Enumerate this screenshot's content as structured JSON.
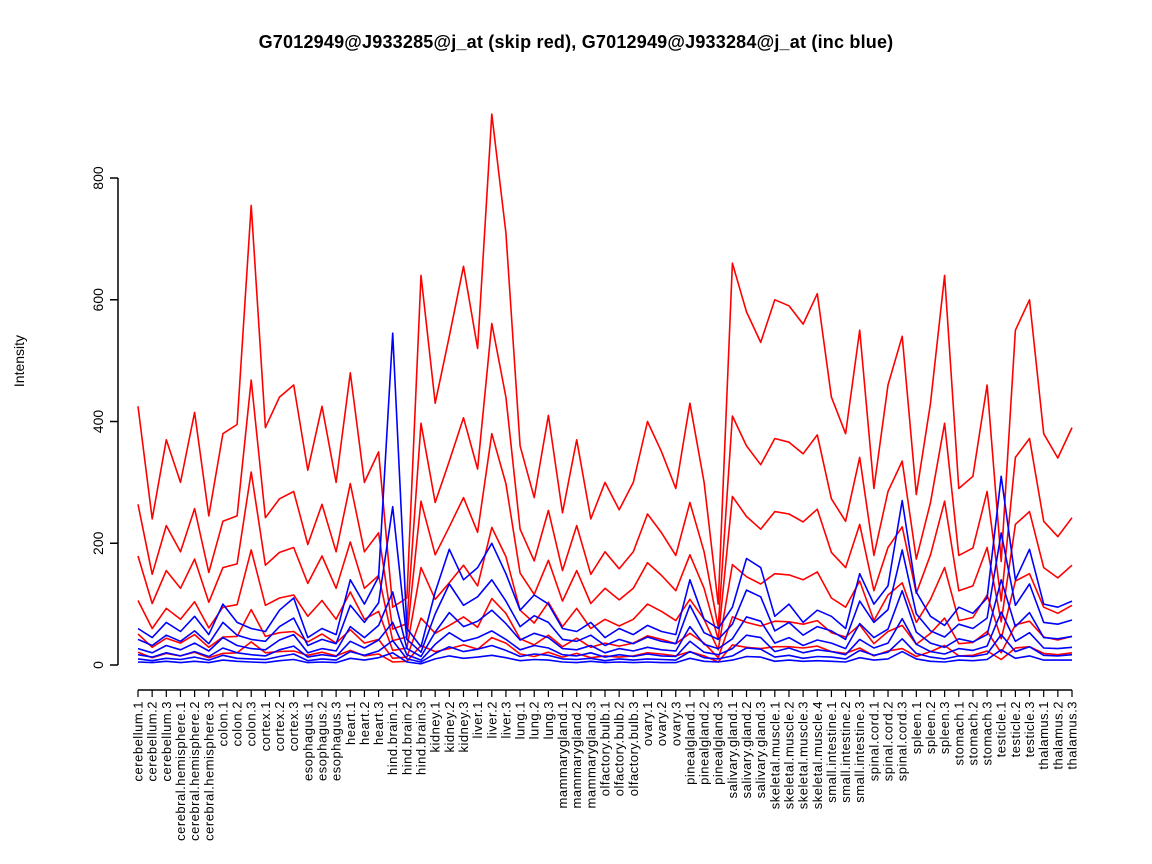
{
  "figure": {
    "background": "#FFFFFF"
  },
  "chart_data": {
    "type": "line",
    "title": "G7012949@J933285@j_at (skip red), G7012949@J933284@j_at (inc blue)",
    "ylabel": "Intensity",
    "xlabel": "",
    "ylim": [
      0,
      905
    ],
    "yticks": [
      0,
      200,
      400,
      600,
      800
    ],
    "grid": false,
    "legend": "none",
    "series_groups": [
      {
        "probeset": "G7012949@J933285@j_at",
        "label": "skip",
        "color": "#FF0000"
      },
      {
        "probeset": "G7012949@J933284@j_at",
        "label": "inc",
        "color": "#0000FF"
      }
    ],
    "categories": [
      "cerebellum.1",
      "cerebellum.2",
      "cerebellum.3",
      "cerebral.hemisphere.1",
      "cerebral.hemisphere.2",
      "cerebral.hemisphere.3",
      "colon.1",
      "colon.2",
      "colon.3",
      "cortex.1",
      "cortex.2",
      "cortex.3",
      "esophagus.1",
      "esophagus.2",
      "esophagus.3",
      "heart.1",
      "heart.2",
      "heart.3",
      "hind.brain.1",
      "hind.brain.2",
      "hind.brain.3",
      "kidney.1",
      "kidney.2",
      "kidney.3",
      "liver.1",
      "liver.2",
      "liver.3",
      "lung.1",
      "lung.2",
      "lung.3",
      "mammarygland.1",
      "mammarygland.2",
      "mammarygland.3",
      "olfactory.bulb.1",
      "olfactory.bulb.2",
      "olfactory.bulb.3",
      "ovary.1",
      "ovary.2",
      "ovary.3",
      "pinealgland.1",
      "pinealgland.2",
      "pinealgland.3",
      "salivary.gland.1",
      "salivary.gland.2",
      "salivary.gland.3",
      "skeletal.muscle.1",
      "skeletal.muscle.2",
      "skeletal.muscle.3",
      "skeletal.muscle.4",
      "small.intestine.1",
      "small.intestine.2",
      "small.intestine.3",
      "spinal.cord.1",
      "spinal.cord.2",
      "spinal.cord.3",
      "spleen.1",
      "spleen.2",
      "spleen.3",
      "stomach.1",
      "stomach.2",
      "stomach.3",
      "testicle.1",
      "testicle.2",
      "testicle.3",
      "thalamus.1",
      "thalamus.2",
      "thalamus.3"
    ],
    "series": [
      {
        "name": "skip-probe-1",
        "group": "skip",
        "color": "#FF0000",
        "values": [
          425,
          240,
          370,
          300,
          415,
          245,
          380,
          395,
          755,
          390,
          440,
          460,
          320,
          425,
          300,
          480,
          300,
          350,
          95,
          110,
          640,
          430,
          540,
          655,
          520,
          905,
          710,
          360,
          275,
          410,
          250,
          370,
          240,
          300,
          255,
          300,
          400,
          350,
          290,
          430,
          300,
          100,
          660,
          580,
          530,
          600,
          590,
          560,
          610,
          440,
          380,
          550,
          290,
          460,
          540,
          280,
          430,
          640,
          290,
          310,
          460,
          170,
          550,
          600,
          380,
          340,
          390
        ]
      },
      {
        "name": "skip-probe-2",
        "group": "skip",
        "color": "#FF0000",
        "values": [
          264,
          149,
          229,
          186,
          257,
          152,
          236,
          245,
          468,
          242,
          273,
          285,
          198,
          264,
          186,
          298,
          186,
          217,
          59,
          68,
          397,
          267,
          335,
          406,
          322,
          561,
          440,
          223,
          171,
          254,
          155,
          229,
          149,
          186,
          158,
          186,
          248,
          217,
          180,
          267,
          186,
          62,
          409,
          360,
          329,
          372,
          366,
          347,
          378,
          273,
          236,
          341,
          180,
          285,
          335,
          174,
          267,
          397,
          180,
          192,
          285,
          105,
          341,
          372,
          236,
          211,
          242
        ]
      },
      {
        "name": "skip-probe-3",
        "group": "skip",
        "color": "#FF0000",
        "values": [
          179,
          101,
          155,
          126,
          174,
          103,
          160,
          166,
          317,
          164,
          185,
          193,
          134,
          179,
          126,
          202,
          126,
          147,
          40,
          46,
          269,
          181,
          227,
          275,
          218,
          380,
          298,
          151,
          116,
          172,
          105,
          155,
          101,
          126,
          107,
          126,
          168,
          147,
          122,
          181,
          126,
          42,
          277,
          244,
          223,
          252,
          248,
          235,
          256,
          185,
          160,
          231,
          122,
          193,
          227,
          118,
          181,
          269,
          122,
          130,
          193,
          71,
          231,
          252,
          160,
          143,
          164
        ]
      },
      {
        "name": "skip-probe-4",
        "group": "skip",
        "color": "#FF0000",
        "values": [
          106,
          60,
          93,
          75,
          104,
          61,
          95,
          99,
          189,
          98,
          110,
          115,
          80,
          106,
          75,
          120,
          75,
          88,
          24,
          28,
          160,
          108,
          135,
          164,
          130,
          226,
          178,
          90,
          69,
          103,
          63,
          93,
          60,
          75,
          64,
          75,
          100,
          88,
          73,
          108,
          75,
          25,
          165,
          145,
          133,
          150,
          148,
          140,
          153,
          110,
          95,
          138,
          73,
          115,
          135,
          70,
          108,
          160,
          73,
          78,
          115,
          43,
          138,
          150,
          95,
          85,
          98
        ]
      },
      {
        "name": "skip-probe-5",
        "group": "skip",
        "color": "#FF0000",
        "values": [
          51,
          29,
          44,
          36,
          50,
          29,
          46,
          47,
          91,
          47,
          53,
          55,
          38,
          51,
          36,
          58,
          36,
          42,
          11,
          13,
          77,
          52,
          65,
          79,
          62,
          109,
          85,
          43,
          33,
          49,
          30,
          44,
          29,
          36,
          31,
          36,
          48,
          42,
          35,
          52,
          36,
          12,
          79,
          70,
          64,
          72,
          71,
          67,
          73,
          53,
          46,
          66,
          35,
          55,
          65,
          34,
          52,
          77,
          35,
          37,
          55,
          20,
          66,
          72,
          46,
          41,
          47
        ]
      },
      {
        "name": "skip-probe-6",
        "group": "skip",
        "color": "#FF0000",
        "values": [
          21,
          12,
          19,
          15,
          21,
          12,
          19,
          20,
          38,
          20,
          22,
          23,
          16,
          21,
          15,
          24,
          15,
          18,
          5,
          6,
          32,
          22,
          27,
          33,
          26,
          45,
          36,
          18,
          14,
          21,
          13,
          19,
          12,
          15,
          13,
          15,
          20,
          18,
          15,
          22,
          15,
          5,
          33,
          29,
          27,
          30,
          30,
          28,
          31,
          22,
          19,
          28,
          15,
          23,
          27,
          14,
          22,
          32,
          15,
          16,
          23,
          9,
          28,
          30,
          19,
          17,
          20
        ]
      },
      {
        "name": "inc-probe-1",
        "group": "inc",
        "color": "#0000FF",
        "values": [
          60,
          45,
          70,
          55,
          80,
          50,
          100,
          70,
          60,
          55,
          90,
          110,
          45,
          60,
          50,
          140,
          100,
          145,
          545,
          60,
          30,
          120,
          190,
          140,
          160,
          200,
          150,
          90,
          115,
          100,
          60,
          55,
          70,
          45,
          60,
          50,
          65,
          55,
          50,
          140,
          75,
          60,
          95,
          175,
          160,
          80,
          100,
          70,
          90,
          80,
          60,
          150,
          100,
          130,
          270,
          120,
          80,
          65,
          95,
          85,
          110,
          310,
          140,
          190,
          100,
          95,
          105
        ]
      },
      {
        "name": "inc-probe-2",
        "group": "inc",
        "color": "#0000FF",
        "values": [
          42,
          32,
          49,
          39,
          56,
          35,
          70,
          49,
          42,
          39,
          63,
          77,
          32,
          42,
          35,
          98,
          70,
          102,
          260,
          42,
          21,
          84,
          133,
          98,
          112,
          140,
          105,
          63,
          81,
          70,
          42,
          39,
          49,
          32,
          42,
          35,
          46,
          39,
          35,
          98,
          53,
          42,
          67,
          123,
          112,
          56,
          70,
          49,
          63,
          56,
          42,
          105,
          70,
          91,
          189,
          84,
          56,
          46,
          67,
          60,
          77,
          217,
          98,
          133,
          70,
          67,
          74
        ]
      },
      {
        "name": "inc-probe-3",
        "group": "inc",
        "color": "#0000FF",
        "values": [
          27,
          20,
          32,
          25,
          36,
          23,
          45,
          32,
          27,
          25,
          41,
          50,
          20,
          27,
          23,
          63,
          45,
          65,
          120,
          27,
          14,
          54,
          86,
          63,
          72,
          90,
          68,
          41,
          52,
          45,
          27,
          25,
          32,
          20,
          27,
          23,
          29,
          25,
          23,
          63,
          34,
          27,
          43,
          79,
          72,
          36,
          45,
          32,
          41,
          36,
          27,
          68,
          45,
          59,
          122,
          54,
          36,
          29,
          43,
          38,
          50,
          140,
          63,
          86,
          45,
          43,
          47
        ]
      },
      {
        "name": "inc-probe-4",
        "group": "inc",
        "color": "#0000FF",
        "values": [
          17,
          13,
          20,
          15,
          22,
          14,
          28,
          20,
          17,
          15,
          25,
          31,
          13,
          17,
          14,
          39,
          28,
          41,
          70,
          17,
          8,
          34,
          53,
          39,
          45,
          56,
          42,
          25,
          32,
          28,
          17,
          15,
          20,
          13,
          17,
          14,
          18,
          15,
          14,
          39,
          21,
          17,
          27,
          49,
          45,
          22,
          28,
          20,
          25,
          22,
          17,
          42,
          28,
          36,
          76,
          34,
          22,
          18,
          27,
          24,
          31,
          87,
          39,
          53,
          28,
          27,
          29
        ]
      },
      {
        "name": "inc-probe-5",
        "group": "inc",
        "color": "#0000FF",
        "values": [
          10,
          7,
          11,
          9,
          13,
          8,
          16,
          11,
          10,
          9,
          14,
          18,
          7,
          10,
          8,
          22,
          16,
          23,
          40,
          10,
          5,
          19,
          30,
          22,
          26,
          32,
          24,
          14,
          18,
          16,
          10,
          9,
          11,
          7,
          10,
          8,
          10,
          9,
          8,
          22,
          12,
          10,
          15,
          28,
          26,
          13,
          16,
          11,
          14,
          13,
          10,
          24,
          16,
          21,
          43,
          19,
          13,
          10,
          15,
          14,
          18,
          50,
          22,
          30,
          16,
          15,
          17
        ]
      },
      {
        "name": "inc-probe-6",
        "group": "inc",
        "color": "#0000FF",
        "values": [
          5,
          4,
          6,
          4,
          6,
          4,
          8,
          6,
          5,
          4,
          7,
          9,
          4,
          5,
          4,
          11,
          8,
          12,
          20,
          5,
          2,
          10,
          15,
          11,
          13,
          16,
          12,
          7,
          9,
          8,
          5,
          4,
          6,
          4,
          5,
          4,
          5,
          4,
          4,
          11,
          6,
          5,
          8,
          14,
          13,
          6,
          8,
          6,
          7,
          6,
          5,
          12,
          8,
          10,
          22,
          10,
          6,
          5,
          8,
          7,
          9,
          25,
          11,
          15,
          8,
          8,
          8
        ]
      }
    ]
  }
}
